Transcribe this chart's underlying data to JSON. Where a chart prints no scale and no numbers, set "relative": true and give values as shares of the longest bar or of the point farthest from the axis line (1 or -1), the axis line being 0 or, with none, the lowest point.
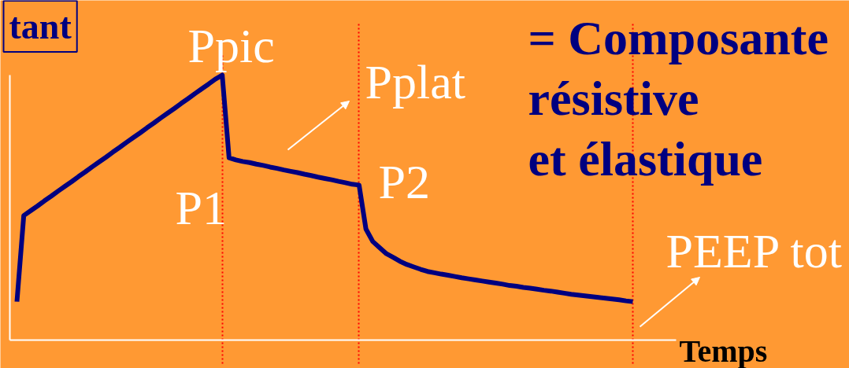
{
  "chart_data": {
    "type": "line",
    "relative": true,
    "xlabel": "Temps",
    "grid": "x",
    "categories": [
      null,
      null,
      null,
      null,
      null,
      null,
      null,
      null,
      null,
      null,
      null,
      null,
      null,
      null,
      null,
      null,
      null,
      null,
      null,
      null,
      null,
      null,
      null,
      null,
      null,
      null,
      null,
      null,
      null,
      null,
      null,
      null,
      null,
      null,
      null,
      null,
      null,
      null,
      null,
      null,
      null,
      null,
      null,
      null,
      null,
      null,
      null,
      null,
      null,
      null,
      null,
      null,
      null,
      null,
      null,
      null,
      null,
      null,
      null,
      null,
      null,
      null,
      null,
      null,
      null,
      null,
      null,
      null,
      null,
      null,
      null,
      null,
      null,
      null,
      null,
      null,
      null,
      null,
      null,
      null,
      null,
      null,
      null,
      null,
      null,
      null,
      null,
      null,
      null,
      null,
      null
    ],
    "series": [
      {
        "color": "#000080",
        "values": [
          0.145,
          0.47,
          0.488,
          0.506,
          0.525,
          0.543,
          0.562,
          0.58,
          0.598,
          0.617,
          0.635,
          0.654,
          0.672,
          0.69,
          0.709,
          0.727,
          0.746,
          0.764,
          0.782,
          0.801,
          0.819,
          0.838,
          0.856,
          0.874,
          0.893,
          0.911,
          0.93,
          0.948,
          0.966,
          0.985,
          1.0,
          0.688,
          0.68,
          0.674,
          0.67,
          0.664,
          0.659,
          0.653,
          0.648,
          0.642,
          0.637,
          0.632,
          0.626,
          0.621,
          0.615,
          0.61,
          0.605,
          0.599,
          0.594,
          0.588,
          0.585,
          0.419,
          0.372,
          0.349,
          0.326,
          0.312,
          0.297,
          0.285,
          0.276,
          0.267,
          0.259,
          0.254,
          0.249,
          0.245,
          0.24,
          0.235,
          0.231,
          0.227,
          0.223,
          0.219,
          0.215,
          0.211,
          0.206,
          0.203,
          0.199,
          0.196,
          0.192,
          0.188,
          0.185,
          0.181,
          0.177,
          0.173,
          0.17,
          0.167,
          0.164,
          0.161,
          0.158,
          0.155,
          0.152,
          0.148,
          0.145
        ]
      }
    ],
    "annotations": [
      "tant",
      "= Composante\nrésistive\net élastique",
      "Ppic",
      "P1",
      "Pplat",
      "P2",
      "PEEP tot"
    ]
  }
}
